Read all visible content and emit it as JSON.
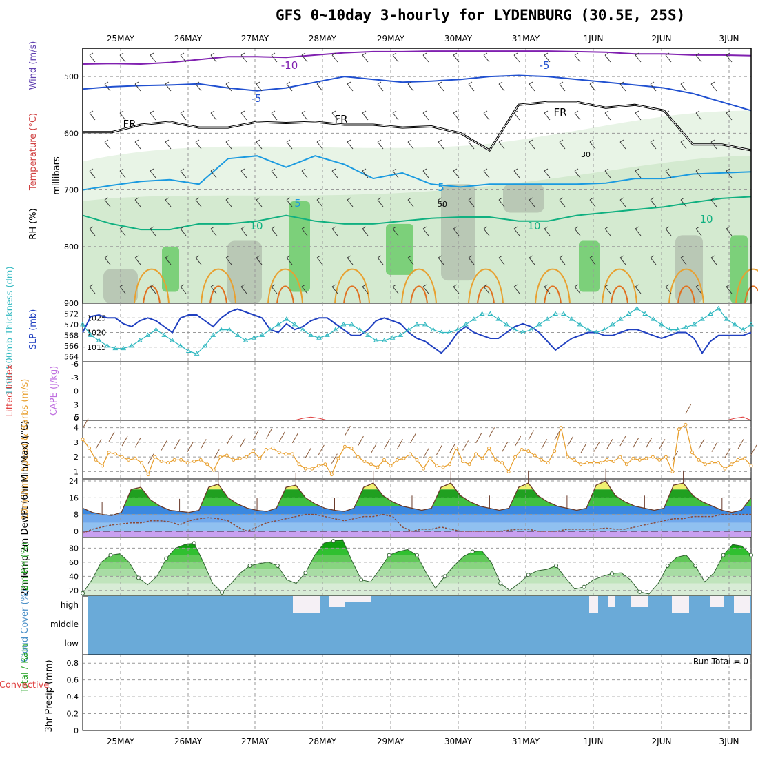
{
  "title": "GFS 0~10day 3-hourly for LYDENBURG (30.5E, 25S)",
  "dates": [
    "25MAY",
    "26MAY",
    "27MAY",
    "28MAY",
    "29MAY",
    "30MAY",
    "31MAY",
    "1JUN",
    "2JUN",
    "3JUN"
  ],
  "colors": {
    "wind_orange": "#e8a030",
    "slp": "#2040c0",
    "thick": "#30b8c0",
    "temp_red": "#e04040",
    "rh_green": "#20a020",
    "cloud": "#6aaad8",
    "cape_purple": "#c070e0"
  },
  "chart_data": [
    {
      "type": "contour",
      "panel": "upper",
      "ylabel": "millibars",
      "side_labels": {
        "rh": "RH (%)",
        "temp": "Temperature (°C)",
        "wind": "Wind (m/s)"
      },
      "yticks": [
        500,
        600,
        700,
        800,
        900
      ],
      "ylim": [
        450,
        900
      ],
      "contour_labels": [
        "-10",
        "-5",
        "-5",
        "FR",
        "FR",
        "FR",
        "5",
        "5",
        "10",
        "10",
        "10",
        "30",
        "50"
      ],
      "isotherms": [
        {
          "label": "-10",
          "values": [
            478,
            477,
            478,
            475,
            470,
            465,
            465,
            466,
            462,
            458,
            456,
            456,
            455,
            455,
            455,
            455,
            455,
            456,
            457,
            460,
            460,
            462,
            462,
            463
          ]
        },
        {
          "label": "-5",
          "values": [
            522,
            518,
            516,
            515,
            513,
            520,
            525,
            520,
            510,
            500,
            505,
            510,
            508,
            505,
            500,
            498,
            500,
            505,
            510,
            515,
            520,
            530,
            545,
            560
          ]
        },
        {
          "label": "FR",
          "values": [
            598,
            598,
            585,
            580,
            590,
            590,
            580,
            582,
            580,
            585,
            585,
            590,
            588,
            600,
            630,
            550,
            545,
            545,
            555,
            550,
            560,
            620,
            620,
            630
          ]
        },
        {
          "label": "5",
          "values": [
            700,
            692,
            685,
            682,
            690,
            645,
            640,
            660,
            640,
            655,
            680,
            670,
            690,
            695,
            690,
            690,
            690,
            690,
            688,
            680,
            680,
            672,
            670,
            668
          ]
        },
        {
          "label": "10",
          "values": [
            745,
            760,
            770,
            770,
            760,
            760,
            755,
            745,
            755,
            760,
            760,
            755,
            750,
            748,
            748,
            755,
            755,
            745,
            740,
            735,
            730,
            722,
            715,
            712
          ]
        }
      ]
    },
    {
      "type": "line",
      "panel": "slp_thickness",
      "ylabel_left": "1000-500mb Thickness (dm)",
      "ylabel_right": "SLP (mb)",
      "yticks_slp": [
        1015,
        1020,
        1025
      ],
      "yticks_thick": [
        564,
        566,
        568,
        570,
        572
      ],
      "ylim_slp": [
        1010,
        1030
      ],
      "series": [
        {
          "name": "SLP (mb)",
          "values": [
            1020,
            1025.5,
            1026,
            1025,
            1025,
            1023,
            1022,
            1024,
            1025,
            1024,
            1022,
            1020,
            1025,
            1026,
            1026,
            1024,
            1022,
            1025,
            1027,
            1028,
            1027,
            1026,
            1025,
            1021,
            1020,
            1023,
            1021,
            1022,
            1024,
            1025,
            1025,
            1023,
            1021,
            1019,
            1019,
            1021,
            1024,
            1025,
            1024,
            1023,
            1020,
            1018,
            1017,
            1015,
            1013,
            1016,
            1020,
            1022,
            1020,
            1019,
            1018,
            1018,
            1020,
            1022,
            1023,
            1022,
            1020,
            1017,
            1014,
            1016,
            1018,
            1019,
            1020,
            1020,
            1019,
            1019,
            1020,
            1021,
            1021,
            1020,
            1019,
            1018,
            1019,
            1020,
            1020,
            1018,
            1013,
            1017,
            1019,
            1019,
            1019,
            1019,
            1020
          ]
        },
        {
          "name": "Thickness (dm)",
          "values": [
            570,
            568,
            567,
            566,
            565.5,
            565.5,
            566,
            567,
            568,
            569,
            568,
            567,
            566,
            565,
            564.5,
            566,
            568,
            569,
            569,
            568,
            567,
            567.5,
            568,
            569,
            570,
            571,
            570,
            569,
            568,
            567.5,
            568,
            569,
            570,
            570,
            569,
            568,
            567,
            567,
            567.5,
            568,
            569,
            570,
            570,
            569,
            568.5,
            568.5,
            569,
            570,
            571,
            572,
            572,
            571,
            570,
            569,
            568.5,
            569,
            570,
            571,
            572,
            572,
            571,
            570,
            569,
            568.5,
            569,
            570,
            571,
            572,
            573,
            572,
            571,
            570,
            569,
            569,
            569.5,
            570,
            571,
            572,
            573,
            571,
            570,
            569,
            570
          ]
        }
      ]
    },
    {
      "type": "line",
      "panel": "cape_li",
      "ylabel_left": "Lifted Index",
      "ylabel_right": "CAPE (J/kg)",
      "yticks": [
        "-6",
        "-3",
        "0",
        "3",
        "6"
      ],
      "yticks_cape": [
        "5"
      ],
      "series": [
        {
          "name": "Lifted Index",
          "values": [
            0,
            0,
            0,
            0,
            0,
            0,
            0,
            0,
            0,
            0,
            0,
            0,
            0,
            0,
            0,
            0,
            0,
            0,
            0,
            0,
            0,
            0,
            0,
            0,
            0,
            0,
            0,
            0,
            0,
            0,
            0,
            0,
            0,
            0,
            0,
            0,
            0,
            0,
            0,
            0,
            0,
            0,
            0,
            0,
            0,
            0,
            0,
            0,
            0,
            0,
            0,
            0,
            0,
            0,
            0,
            0,
            0,
            0,
            0,
            0,
            0,
            0,
            0,
            0,
            0,
            0,
            0,
            0,
            0,
            0,
            0,
            0,
            0,
            0,
            0,
            0,
            0,
            0,
            0,
            0,
            0,
            0,
            0
          ]
        },
        {
          "name": "CAPE (J/kg)",
          "values": [
            0,
            0,
            0,
            0,
            0,
            0,
            0,
            0,
            0,
            0,
            0,
            0,
            0,
            0,
            0,
            0,
            0,
            0,
            0,
            0,
            0,
            0,
            0,
            0,
            0,
            0,
            0,
            5,
            8,
            5,
            0,
            0,
            0,
            0,
            0,
            0,
            0,
            0,
            0,
            0,
            0,
            0,
            0,
            0,
            0,
            0,
            0,
            0,
            0,
            0,
            0,
            0,
            0,
            0,
            0,
            0,
            0,
            0,
            0,
            0,
            0,
            0,
            0,
            0,
            0,
            0,
            0,
            0,
            0,
            0,
            0,
            0,
            0,
            0,
            0,
            0,
            0,
            0,
            0,
            0,
            5,
            8,
            0
          ]
        }
      ]
    },
    {
      "type": "line",
      "panel": "wind10m",
      "ylabel": "10m Wind Speed & Barbs (m/s)",
      "yticks": [
        1,
        2,
        3,
        4
      ],
      "ylim": [
        0.5,
        4.5
      ],
      "series": [
        {
          "name": "10m Wind Speed",
          "values": [
            3.2,
            2.6,
            1.8,
            1.4,
            2.3,
            2.2,
            2.0,
            1.8,
            1.9,
            1.6,
            0.8,
            2.0,
            1.7,
            1.6,
            1.8,
            1.8,
            1.6,
            1.7,
            1.8,
            1.5,
            1.1,
            2.0,
            2.1,
            1.8,
            1.9,
            2.0,
            2.4,
            1.9,
            2.5,
            2.6,
            2.3,
            2.2,
            2.2,
            1.5,
            1.2,
            1.2,
            1.4,
            1.5,
            0.8,
            1.9,
            2.7,
            2.6,
            2.0,
            1.7,
            1.5,
            1.3,
            1.8,
            1.4,
            1.8,
            1.9,
            2.2,
            1.8,
            1.2,
            1.9,
            1.4,
            1.3,
            1.5,
            2.6,
            1.7,
            1.5,
            2.2,
            1.9,
            2.6,
            1.8,
            1.6,
            1.0,
            2.0,
            2.5,
            2.4,
            2.1,
            1.8,
            1.6,
            2.4,
            4.0,
            2.0,
            1.8,
            1.5,
            1.6,
            1.6,
            1.6,
            1.8,
            1.7,
            2.0,
            1.5,
            1.9,
            1.8,
            1.9,
            2.0,
            1.8,
            2.0,
            1.0,
            3.9,
            4.2,
            2.3,
            1.8,
            1.5,
            1.6,
            1.6,
            1.2,
            1.5,
            1.8,
            1.9,
            1.4
          ]
        }
      ]
    },
    {
      "type": "area",
      "panel": "temp2m",
      "ylabel": "2m Temp 2m DewPt (6hr Min/Max) (°C)",
      "yticks": [
        0,
        8,
        16,
        24
      ],
      "ylim": [
        -3,
        25
      ],
      "series": [
        {
          "name": "2m Temp",
          "values": [
            11,
            9,
            8,
            7.5,
            9,
            20,
            21,
            15,
            12,
            10,
            9.5,
            9,
            10,
            21,
            22.5,
            16,
            13,
            11,
            10,
            9.5,
            11,
            21,
            22,
            16,
            13,
            11,
            10,
            9.5,
            11,
            21,
            23,
            17,
            14,
            12,
            11,
            10,
            11,
            21,
            23,
            17,
            14,
            12,
            11,
            10,
            11,
            21,
            23,
            17,
            14,
            12,
            11,
            10,
            11,
            22,
            24,
            17,
            14,
            12,
            11,
            10,
            11,
            22,
            23,
            17,
            14,
            12,
            10,
            9,
            10,
            16
          ]
        },
        {
          "name": "2m DewPt",
          "values": [
            -1,
            1,
            2,
            3,
            3.5,
            4,
            4,
            5,
            5,
            4.5,
            3,
            5,
            6,
            6.5,
            6,
            5,
            2,
            0,
            2,
            4,
            5,
            6,
            7,
            8,
            8,
            7,
            6,
            5,
            6,
            7,
            7,
            8,
            7,
            2,
            0,
            1,
            1,
            2,
            1,
            0,
            0,
            0,
            0,
            0,
            0.5,
            1,
            1,
            0,
            0,
            0,
            1,
            1,
            1,
            1,
            1.5,
            1,
            1,
            2,
            3,
            4,
            5,
            6,
            6,
            7,
            7,
            7,
            8,
            8,
            8,
            8
          ]
        }
      ]
    },
    {
      "type": "area",
      "panel": "rh2m",
      "ylabel": "2m RH (%)",
      "yticks": [
        20,
        40,
        60,
        80
      ],
      "ylim": [
        12,
        95
      ],
      "series": [
        {
          "name": "2m RH",
          "values": [
            16,
            35,
            60,
            70,
            72,
            60,
            38,
            28,
            40,
            65,
            80,
            85,
            87,
            60,
            30,
            17,
            30,
            45,
            55,
            58,
            60,
            55,
            35,
            30,
            45,
            70,
            87,
            90,
            92,
            62,
            35,
            32,
            50,
            70,
            75,
            78,
            70,
            45,
            23,
            40,
            55,
            68,
            75,
            76,
            60,
            30,
            20,
            30,
            42,
            48,
            50,
            55,
            38,
            22,
            25,
            35,
            40,
            44,
            45,
            35,
            18,
            15,
            30,
            55,
            67,
            70,
            55,
            32,
            45,
            70,
            85,
            83,
            70
          ]
        }
      ]
    },
    {
      "type": "bar",
      "panel": "cloud",
      "ylabel": "Cloud Cover (%)",
      "levels": [
        "high",
        "middle",
        "low"
      ]
    },
    {
      "type": "bar",
      "panel": "precip",
      "ylabel_left": "Total / Rain",
      "ylabel_sub": "Convective",
      "ylabel_right": "3hr Precip (mm)",
      "yticks": [
        0,
        0.2,
        0.4,
        0.6,
        0.8
      ],
      "ylim": [
        0,
        0.9
      ],
      "run_total": "Run Total = 0",
      "values": []
    }
  ]
}
